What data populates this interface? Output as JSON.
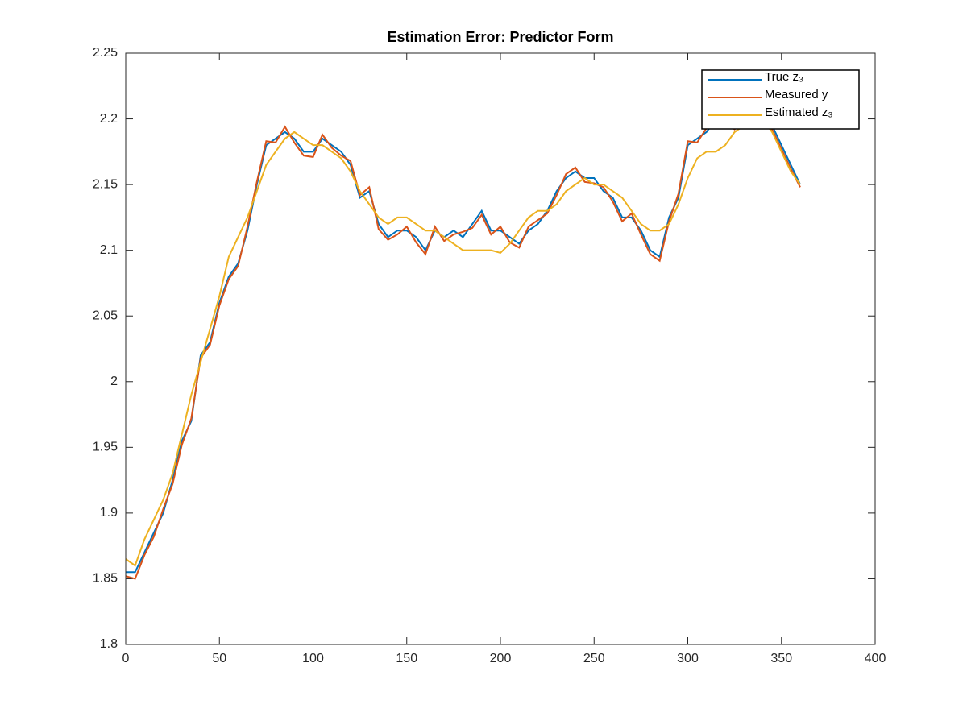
{
  "chart_data": {
    "type": "line",
    "title": "Estimation Error: Predictor Form",
    "x": [
      0,
      5,
      10,
      15,
      20,
      25,
      30,
      35,
      40,
      45,
      50,
      55,
      60,
      65,
      70,
      75,
      80,
      85,
      90,
      95,
      100,
      105,
      110,
      115,
      120,
      125,
      130,
      135,
      140,
      145,
      150,
      155,
      160,
      165,
      170,
      175,
      180,
      185,
      190,
      195,
      200,
      205,
      210,
      215,
      220,
      225,
      230,
      235,
      240,
      245,
      250,
      255,
      260,
      265,
      270,
      275,
      280,
      285,
      290,
      295,
      300,
      305,
      310,
      315,
      320,
      325,
      330,
      335,
      340,
      345,
      350,
      355,
      360
    ],
    "series": [
      {
        "name": "True z₃",
        "color": "#0072bd",
        "values": [
          1.855,
          1.855,
          1.87,
          1.885,
          1.9,
          1.925,
          1.955,
          1.97,
          2.02,
          2.03,
          2.06,
          2.08,
          2.09,
          2.115,
          2.15,
          2.18,
          2.185,
          2.19,
          2.185,
          2.175,
          2.175,
          2.185,
          2.18,
          2.175,
          2.165,
          2.14,
          2.145,
          2.12,
          2.11,
          2.115,
          2.115,
          2.11,
          2.1,
          2.115,
          2.11,
          2.115,
          2.11,
          2.12,
          2.13,
          2.115,
          2.115,
          2.11,
          2.105,
          2.115,
          2.12,
          2.13,
          2.145,
          2.155,
          2.16,
          2.155,
          2.155,
          2.145,
          2.14,
          2.125,
          2.125,
          2.115,
          2.1,
          2.095,
          2.125,
          2.14,
          2.18,
          2.185,
          2.19,
          2.2,
          2.2,
          2.195,
          2.2,
          2.2,
          2.205,
          2.195,
          2.18,
          2.165,
          2.15
        ]
      },
      {
        "name": "Measured y",
        "color": "#d95319",
        "values": [
          1.852,
          1.85,
          1.868,
          1.882,
          1.903,
          1.922,
          1.952,
          1.972,
          2.018,
          2.028,
          2.058,
          2.078,
          2.088,
          2.118,
          2.152,
          2.183,
          2.182,
          2.194,
          2.182,
          2.172,
          2.171,
          2.188,
          2.178,
          2.172,
          2.168,
          2.142,
          2.148,
          2.116,
          2.108,
          2.112,
          2.118,
          2.106,
          2.097,
          2.118,
          2.107,
          2.112,
          2.114,
          2.117,
          2.127,
          2.112,
          2.118,
          2.106,
          2.102,
          2.118,
          2.123,
          2.128,
          2.142,
          2.158,
          2.163,
          2.152,
          2.151,
          2.148,
          2.137,
          2.122,
          2.128,
          2.112,
          2.097,
          2.092,
          2.122,
          2.143,
          2.183,
          2.182,
          2.193,
          2.203,
          2.197,
          2.192,
          2.203,
          2.197,
          2.208,
          2.192,
          2.177,
          2.162,
          2.148
        ]
      },
      {
        "name": "Estimated z₃",
        "color": "#edb120",
        "values": [
          1.865,
          1.86,
          1.88,
          1.895,
          1.91,
          1.93,
          1.96,
          1.99,
          2.015,
          2.04,
          2.065,
          2.095,
          2.11,
          2.125,
          2.145,
          2.165,
          2.175,
          2.185,
          2.19,
          2.185,
          2.18,
          2.18,
          2.175,
          2.17,
          2.16,
          2.145,
          2.135,
          2.125,
          2.12,
          2.125,
          2.125,
          2.12,
          2.115,
          2.115,
          2.11,
          2.105,
          2.1,
          2.1,
          2.1,
          2.1,
          2.098,
          2.105,
          2.115,
          2.125,
          2.13,
          2.13,
          2.135,
          2.145,
          2.15,
          2.155,
          2.15,
          2.15,
          2.145,
          2.14,
          2.13,
          2.12,
          2.115,
          2.115,
          2.12,
          2.135,
          2.155,
          2.17,
          2.175,
          2.175,
          2.18,
          2.19,
          2.195,
          2.2,
          2.2,
          2.19,
          2.175,
          2.16,
          2.15
        ]
      }
    ],
    "xlim": [
      0,
      400
    ],
    "xticks": [
      0,
      50,
      100,
      150,
      200,
      250,
      300,
      350,
      400
    ],
    "ylim": [
      1.8,
      2.25
    ],
    "yticks": [
      1.8,
      1.85,
      1.9,
      1.95,
      2,
      2.05,
      2.1,
      2.15,
      2.2,
      2.25
    ],
    "legend": "upper right"
  }
}
